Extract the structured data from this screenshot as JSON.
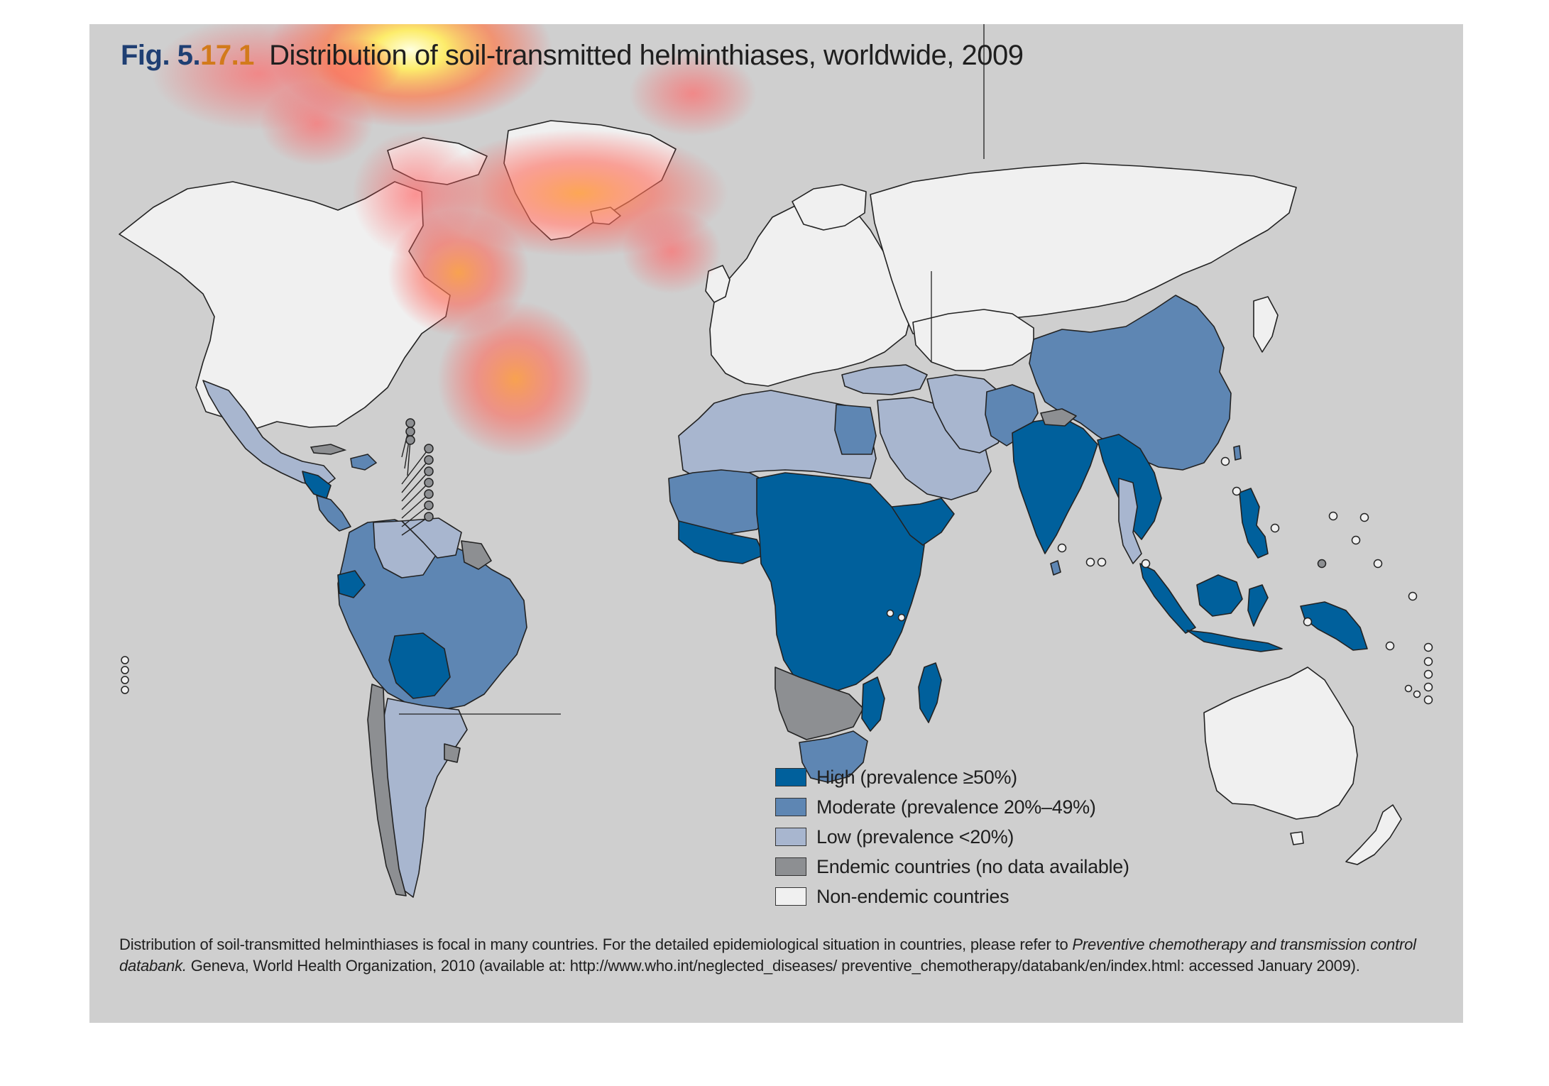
{
  "figure": {
    "label": "Fig. 5.",
    "number": "17.1",
    "title": "Distribution of soil-transmitted helminthiases, worldwide, 2009"
  },
  "legend": [
    {
      "label": "High (prevalence ≥50%)",
      "color": "#00609c"
    },
    {
      "label": "Moderate (prevalence 20%–49%)",
      "color": "#5e86b3"
    },
    {
      "label": "Low (prevalence <20%)",
      "color": "#a8b6cf"
    },
    {
      "label": "Endemic countries (no data available)",
      "color": "#8d8f92"
    },
    {
      "label": "Non-endemic countries",
      "color": "#f0f0f0"
    }
  ],
  "footnote": {
    "text_before": "Distribution of soil-transmitted helminthiases is focal in many countries. For the detailed epidemiological situation in countries, please refer to ",
    "italic": "Preventive chemotherapy and transmission control databank.",
    "text_after": " Geneva, World Health Organization, 2010 (available at: http://www.who.int/neglected_diseases/ preventive_chemotherapy/databank/en/index.html: accessed January 2009)."
  },
  "colors": {
    "panel_background": "#cfcfcf",
    "border": "#222222",
    "heat_core": "#ffff99",
    "heat_mid": "#ff8c3c",
    "heat_outer": "#ff5050"
  }
}
